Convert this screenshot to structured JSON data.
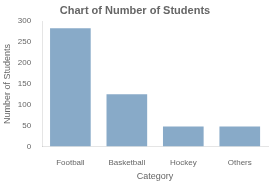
{
  "chart_data": {
    "type": "bar",
    "title": "Chart of Number of Students",
    "xlabel": "Category",
    "ylabel": "Number of Students",
    "categories": [
      "Football",
      "Basketball",
      "Hockey",
      "Others"
    ],
    "values": [
      283,
      125,
      48,
      48
    ],
    "color": "#88AAC8",
    "ylim": [
      0,
      300
    ],
    "yticks": [
      0,
      50,
      100,
      150,
      200,
      250,
      300
    ],
    "grid": false
  }
}
